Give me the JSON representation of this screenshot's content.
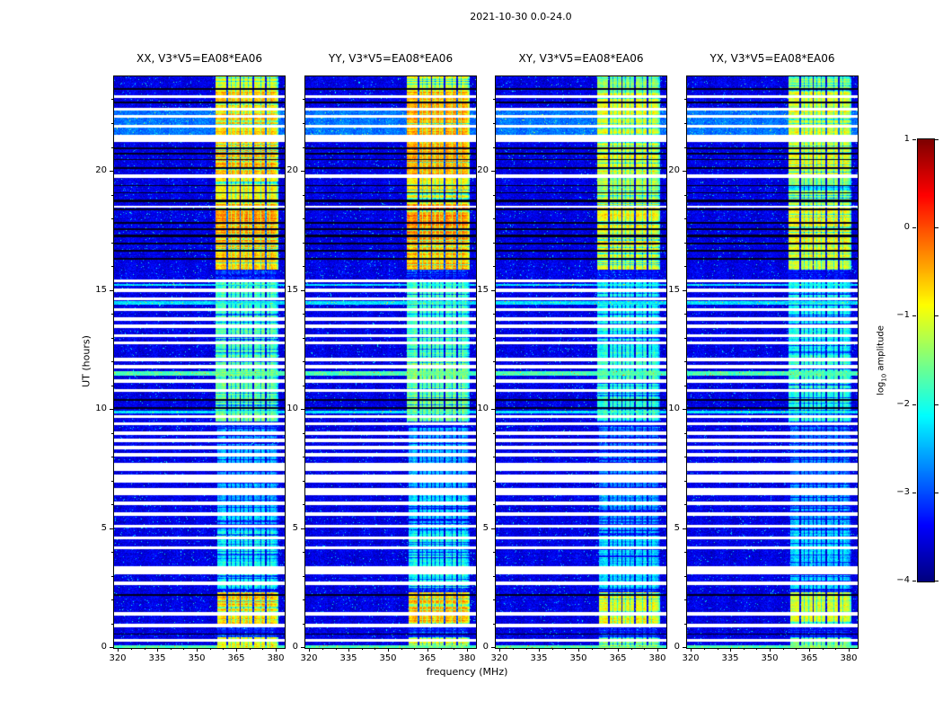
{
  "chart_data": {
    "type": "heatmap",
    "title": "2021-10-30 0.0-24.0",
    "panels": [
      {
        "name": "XX",
        "title": "XX, V3*V5=EA08*EA06",
        "seed": 101,
        "band_scale": 1.0
      },
      {
        "name": "YY",
        "title": "YY, V3*V5=EA08*EA06",
        "seed": 202,
        "band_scale": 1.02
      },
      {
        "name": "XY",
        "title": "XY, V3*V5=EA08*EA06",
        "seed": 303,
        "band_scale": 0.88
      },
      {
        "name": "YX",
        "title": "YX, V3*V5=EA08*EA06",
        "seed": 404,
        "band_scale": 0.86
      }
    ],
    "x_axis": {
      "label": "frequency (MHz)",
      "range": [
        318.5,
        383.5
      ],
      "major_ticks": [
        320,
        335,
        350,
        365,
        380
      ],
      "minor_step": 5
    },
    "y_axis": {
      "label": "UT (hours)",
      "range": [
        0,
        24
      ],
      "major_ticks": [
        0,
        5,
        10,
        15,
        20
      ],
      "minor_step": 1
    },
    "colorbar": {
      "label_prefix": "log",
      "label_sub": "10",
      "label_suffix": " amplitude",
      "range": [
        -4,
        1
      ],
      "ticks": [
        1,
        0,
        -1,
        -2,
        -3,
        -4
      ]
    },
    "noise_floor": -3.75,
    "rfi_band": {
      "freq_start": 356.5,
      "freq_end": 381.0,
      "subband_period": 4.9,
      "separator_width": 0.55,
      "channel_period": 1.63,
      "channel_width": 0.22,
      "low_time_edge_shift": 1.2,
      "time_profile": [
        [
          0.0,
          0.45,
          -1.0
        ],
        [
          0.95,
          2.35,
          -0.6
        ],
        [
          2.5,
          4.9,
          -2.1
        ],
        [
          4.9,
          6.5,
          -2.4
        ],
        [
          6.5,
          9.3,
          -2.6
        ],
        [
          9.5,
          12.3,
          -1.6
        ],
        [
          12.3,
          15.35,
          -1.8
        ],
        [
          15.9,
          16.9,
          -0.6
        ],
        [
          16.9,
          18.65,
          -0.4
        ],
        [
          18.65,
          19.9,
          -0.9
        ],
        [
          19.9,
          21.25,
          -0.55
        ],
        [
          21.25,
          23.35,
          -0.6
        ],
        [
          23.35,
          24.0,
          -1.1
        ]
      ]
    },
    "data_gaps": [
      [
        0.25,
        0.38
      ],
      [
        0.85,
        1.0
      ],
      [
        1.35,
        1.5
      ],
      [
        2.65,
        2.78
      ],
      [
        3.1,
        3.45
      ],
      [
        4.15,
        4.28
      ],
      [
        4.55,
        4.68
      ],
      [
        5.05,
        5.18
      ],
      [
        5.55,
        5.68
      ],
      [
        6.0,
        6.14
      ],
      [
        6.4,
        6.72
      ],
      [
        6.95,
        7.28
      ],
      [
        7.45,
        7.78
      ],
      [
        8.05,
        8.2
      ],
      [
        8.35,
        8.48
      ],
      [
        8.65,
        8.78
      ],
      [
        8.95,
        9.08
      ],
      [
        9.35,
        9.48
      ],
      [
        9.65,
        9.78
      ],
      [
        10.75,
        10.88
      ],
      [
        11.15,
        11.28
      ],
      [
        11.75,
        11.87
      ],
      [
        12.05,
        12.18
      ],
      [
        12.75,
        12.87
      ],
      [
        13.05,
        13.17
      ],
      [
        13.45,
        13.57
      ],
      [
        13.75,
        13.87
      ],
      [
        14.15,
        14.27
      ],
      [
        14.6,
        14.72
      ],
      [
        14.95,
        15.08
      ],
      [
        15.35,
        15.48
      ],
      [
        18.48,
        18.58
      ],
      [
        19.75,
        19.88
      ],
      [
        21.25,
        21.55
      ],
      [
        21.85,
        21.98
      ],
      [
        22.25,
        22.38
      ],
      [
        22.55,
        22.68
      ],
      [
        23.1,
        23.22
      ]
    ],
    "flagged_rows": [
      [
        0.55,
        0.61
      ],
      [
        2.2,
        2.27
      ],
      [
        10.04,
        10.1
      ],
      [
        10.36,
        10.44
      ],
      [
        16.3,
        16.38
      ],
      [
        16.66,
        16.72
      ],
      [
        16.96,
        17.02
      ],
      [
        17.26,
        17.34
      ],
      [
        17.56,
        17.62
      ],
      [
        17.82,
        17.9
      ],
      [
        18.38,
        18.44
      ],
      [
        18.73,
        18.82
      ],
      [
        19.08,
        19.14
      ],
      [
        19.38,
        19.44
      ],
      [
        20.12,
        20.2
      ],
      [
        20.48,
        20.54
      ],
      [
        20.72,
        20.78
      ],
      [
        20.95,
        21.02
      ],
      [
        22.88,
        22.94
      ],
      [
        23.45,
        23.52
      ]
    ],
    "enhanced_rows": [
      [
        0.0,
        0.1,
        -2.0
      ],
      [
        9.85,
        9.95,
        -2.5
      ],
      [
        11.45,
        11.62,
        -2.0
      ],
      [
        14.42,
        14.55,
        -2.5
      ],
      [
        15.2,
        15.3,
        -2.5
      ],
      [
        21.3,
        22.55,
        -3.05
      ]
    ]
  }
}
